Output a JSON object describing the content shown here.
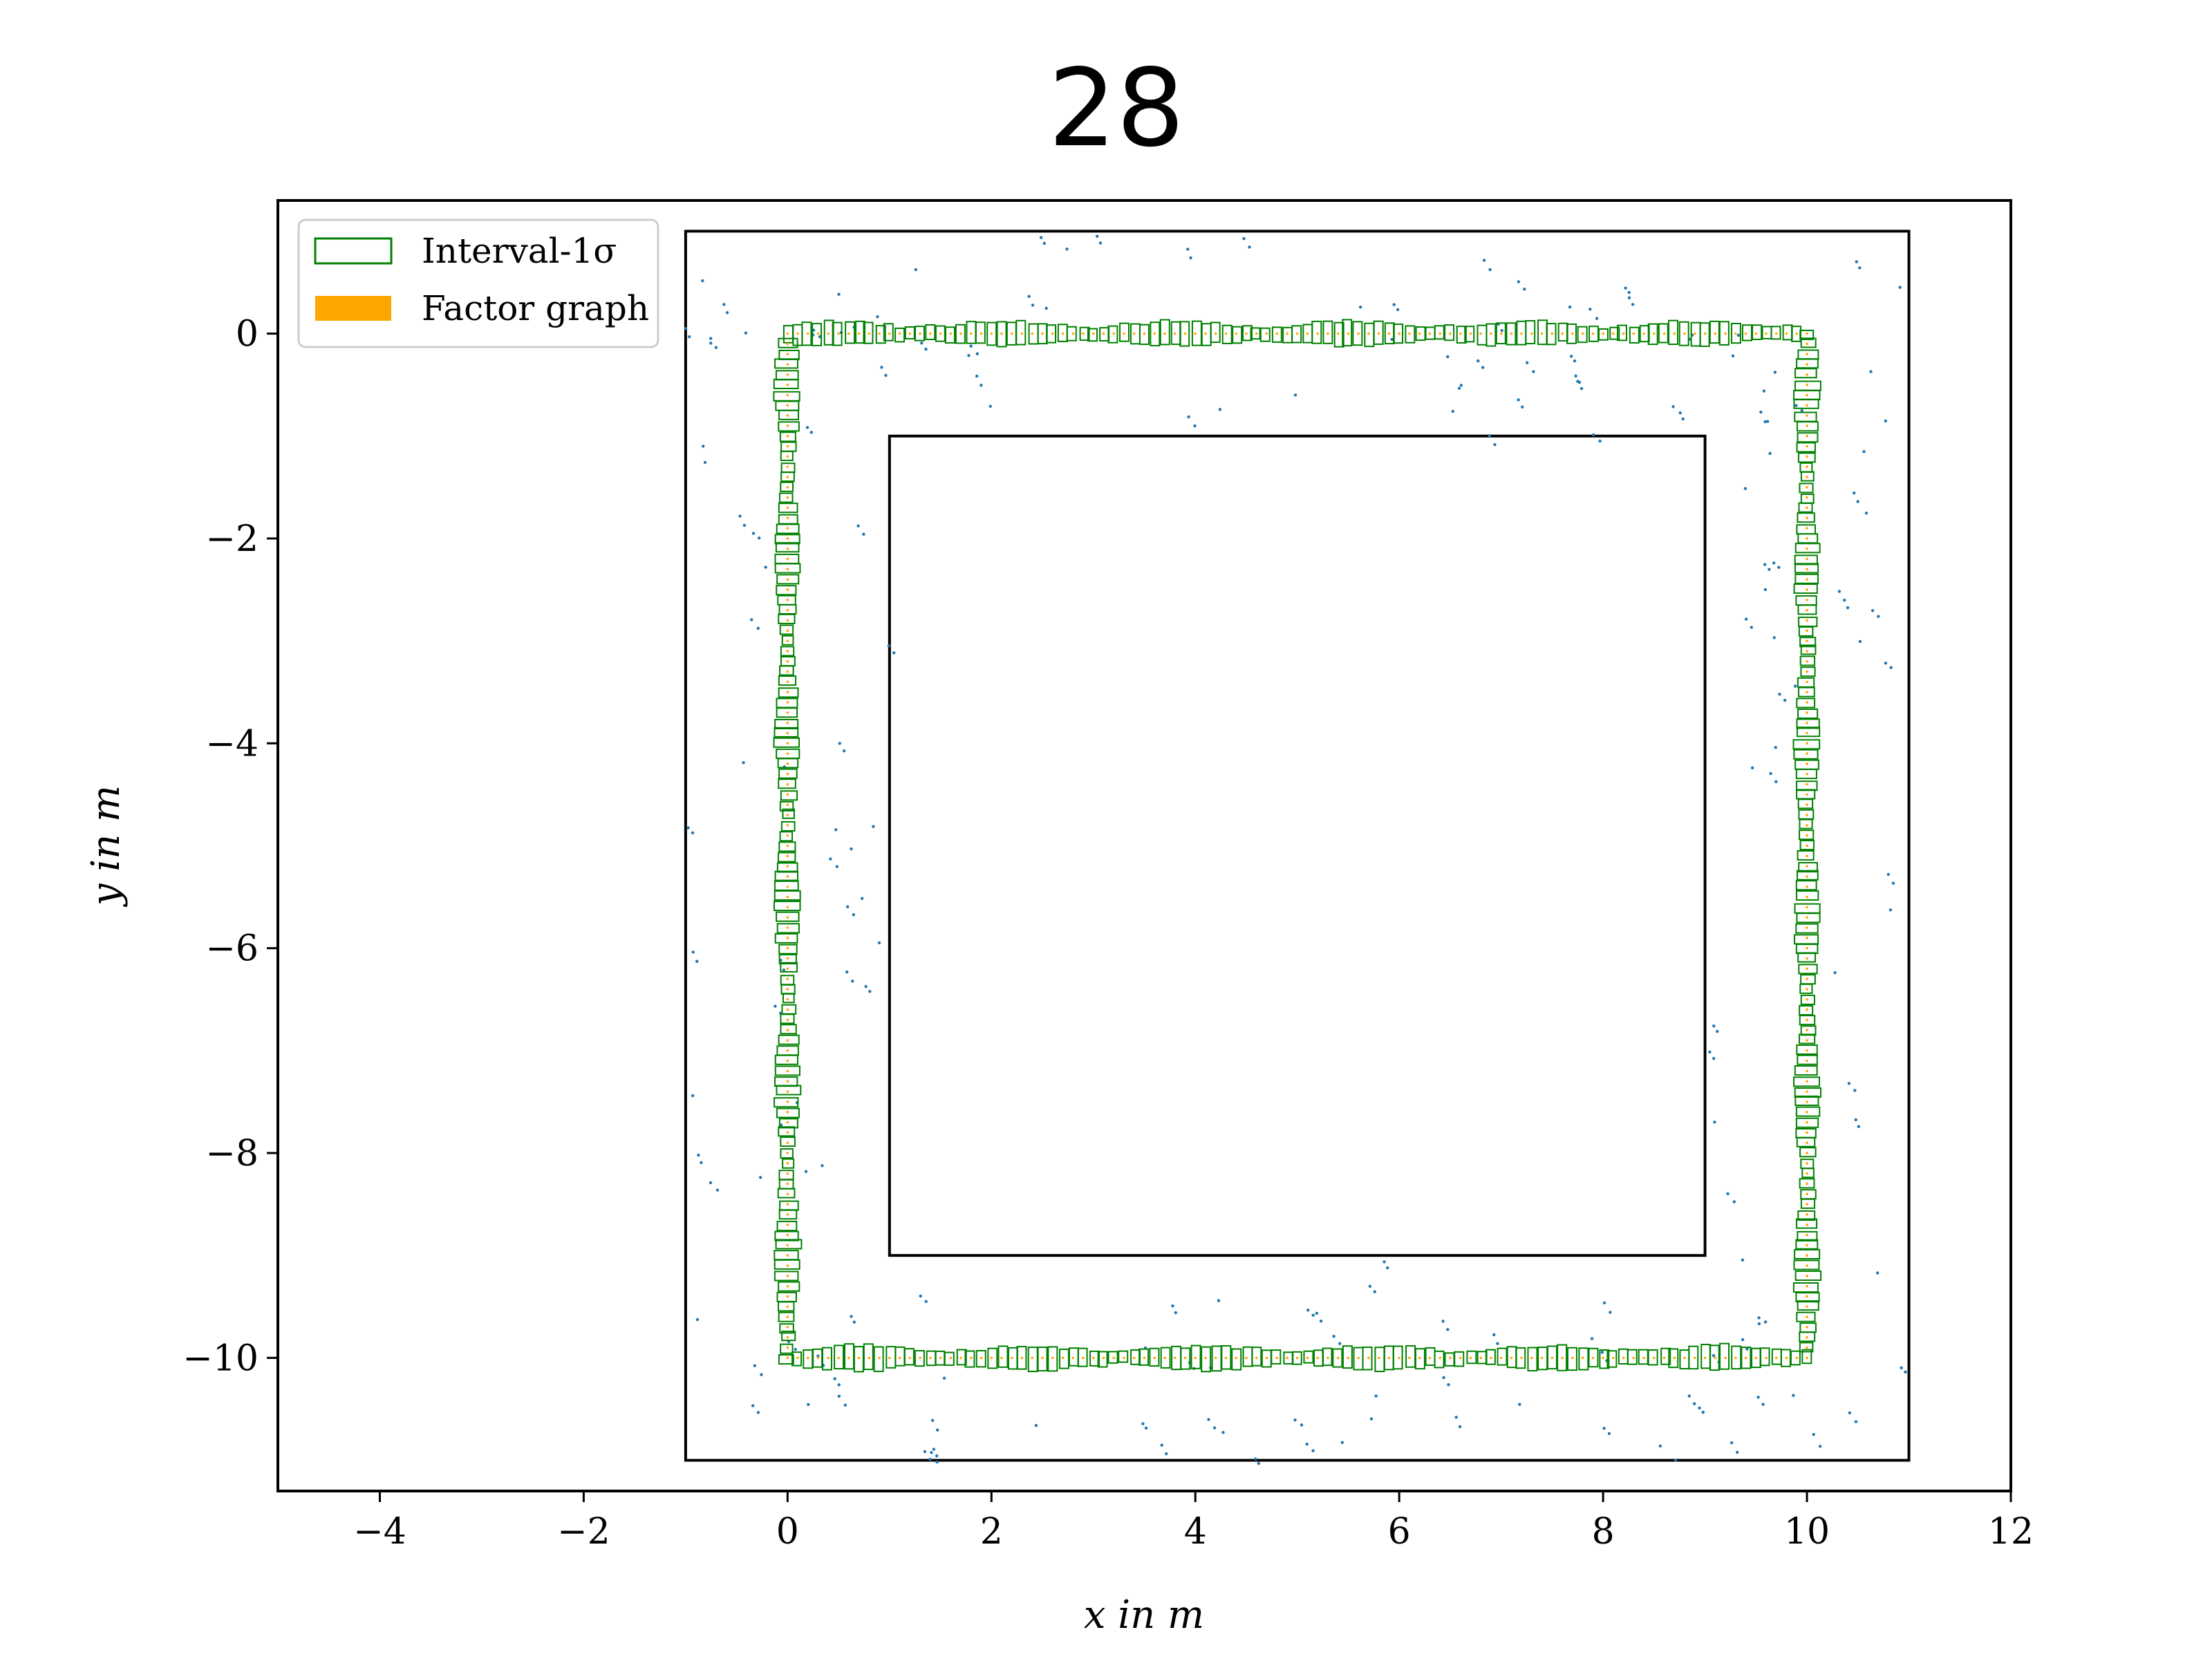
{
  "chart_data": {
    "type": "scatter",
    "title": "28",
    "xlabel": "x in m",
    "ylabel": "y in m",
    "xlim": [
      -5,
      12
    ],
    "ylim": [
      -11.3,
      1.3
    ],
    "xticks": [
      -4,
      -2,
      0,
      2,
      4,
      6,
      8,
      10,
      12
    ],
    "yticks": [
      0,
      -2,
      -4,
      -6,
      -8,
      -10
    ],
    "xtick_labels": [
      "−4",
      "−2",
      "0",
      "2",
      "4",
      "6",
      "8",
      "10",
      "12"
    ],
    "ytick_labels": [
      "0",
      "−2",
      "−4",
      "−6",
      "−8",
      "−10"
    ],
    "grid": false,
    "legend": {
      "placement": "top-left",
      "entries": [
        {
          "label": "Interval-1σ",
          "style": "box-outline",
          "color": "#008000"
        },
        {
          "label": "Factor graph",
          "style": "filled",
          "color": "#ffa500"
        }
      ]
    },
    "colors": {
      "interval_box": "#008000",
      "factor_graph": "#ffa500",
      "landmarks": "#1f77b4",
      "walls": "#000000"
    },
    "walls": {
      "outer_rectangle": {
        "x_min": -1,
        "x_max": 11,
        "y_min": -11,
        "y_max": 1
      },
      "inner_rectangle": {
        "x_min": 1,
        "x_max": 9,
        "y_min": -9,
        "y_max": -1
      }
    },
    "trajectory": {
      "path": [
        [
          0,
          0
        ],
        [
          10,
          0
        ],
        [
          10,
          -10
        ],
        [
          0,
          -10
        ],
        [
          0,
          0
        ]
      ],
      "interval_box_half_size": 0.08,
      "step": 0.1
    },
    "landmarks_approx_count": 190
  }
}
